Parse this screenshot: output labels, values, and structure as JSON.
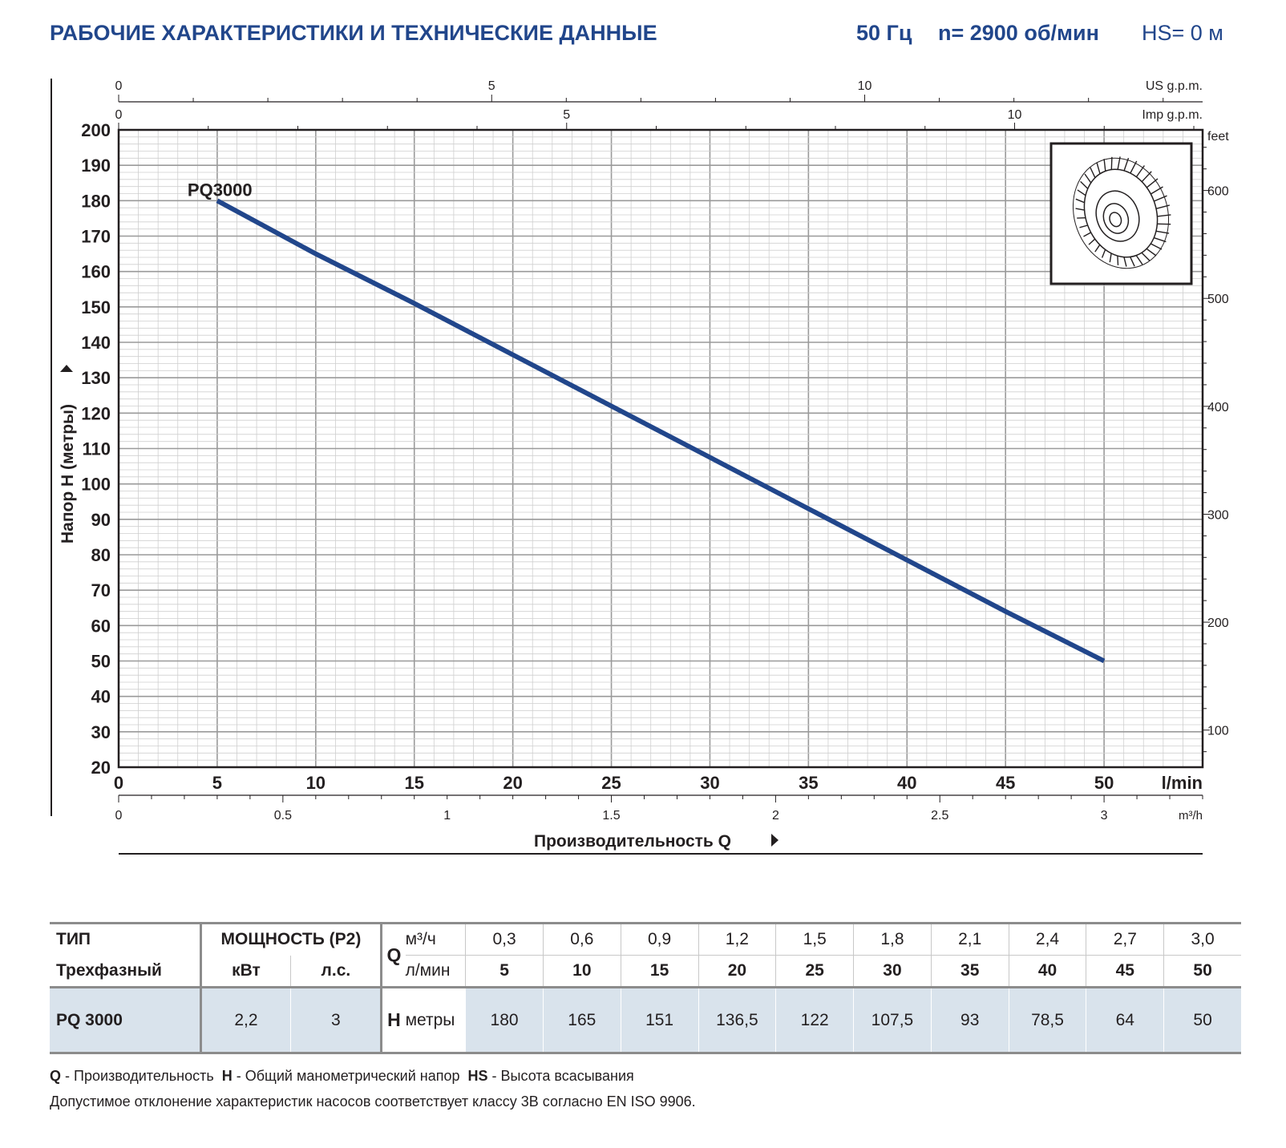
{
  "header": {
    "title": "РАБОЧИЕ ХАРАКТЕРИСТИКИ И ТЕХНИЧЕСКИЕ ДАННЫЕ",
    "frequency": "50 Гц",
    "speed": "n= 2900 об/мин",
    "suction": "HS= 0 м"
  },
  "chart_data": {
    "type": "line",
    "title": "",
    "xlabel": "Производительность Q",
    "ylabel": "Напор H (метры)",
    "x_unit": "l/min",
    "xlim": [
      0,
      55
    ],
    "ylim": [
      20,
      200
    ],
    "x_ticks": [
      "0",
      "5",
      "10",
      "15",
      "20",
      "25",
      "30",
      "35",
      "40",
      "45",
      "50"
    ],
    "y_ticks": [
      "20",
      "30",
      "40",
      "50",
      "60",
      "70",
      "80",
      "90",
      "100",
      "110",
      "120",
      "130",
      "140",
      "150",
      "160",
      "170",
      "180",
      "190",
      "200"
    ],
    "secondary_axes": {
      "us_gpm": {
        "unit": "US g.p.m.",
        "ticks": [
          "0",
          "5",
          "10"
        ]
      },
      "imp_gpm": {
        "unit": "Imp g.p.m.",
        "ticks": [
          "0",
          "5",
          "10"
        ]
      },
      "m3h": {
        "unit": "m³/h",
        "ticks": [
          "0",
          "0.5",
          "1",
          "1.5",
          "2",
          "2.5",
          "3"
        ]
      },
      "feet": {
        "unit": "feet",
        "ticks": [
          "100",
          "200",
          "300",
          "400",
          "500",
          "600"
        ]
      }
    },
    "series": [
      {
        "name": "PQ3000",
        "color": "#21468b",
        "x": [
          5,
          10,
          15,
          20,
          25,
          30,
          35,
          40,
          45,
          50
        ],
        "y": [
          180,
          165,
          151,
          136.5,
          122,
          107.5,
          93,
          78.5,
          64,
          50
        ]
      }
    ]
  },
  "impeller": {
    "icon": "impeller-icon"
  },
  "table": {
    "type_label": "ТИП",
    "phase_label": "Трехфазный",
    "power_label": "МОЩНОСТЬ (P2)",
    "kw_label": "кВт",
    "hp_label": "л.с.",
    "q_label": "Q",
    "q_unit_m3": "м³/ч",
    "q_unit_lmin": "л/мин",
    "flow_m3h": [
      "0,3",
      "0,6",
      "0,9",
      "1,2",
      "1,5",
      "1,8",
      "2,1",
      "2,4",
      "2,7",
      "3,0"
    ],
    "flow_lmin": [
      "5",
      "10",
      "15",
      "20",
      "25",
      "30",
      "35",
      "40",
      "45",
      "50"
    ],
    "row": {
      "model": "PQ 3000",
      "kw": "2,2",
      "hp": "3",
      "h_label": "H",
      "h_unit": "метры",
      "heads": [
        "180",
        "165",
        "151",
        "136,5",
        "122",
        "107,5",
        "93",
        "78,5",
        "64",
        "50"
      ]
    }
  },
  "legend": {
    "q_key": "Q",
    "q_text": " - Производительность",
    "h_key": "H",
    "h_text": " - Общий манометрический напор",
    "hs_key": "HS",
    "hs_text": " - Высота всасывания"
  },
  "note": "Допустимое отклонение характеристик насосов соответствует классу 3В согласно EN ISO 9906."
}
